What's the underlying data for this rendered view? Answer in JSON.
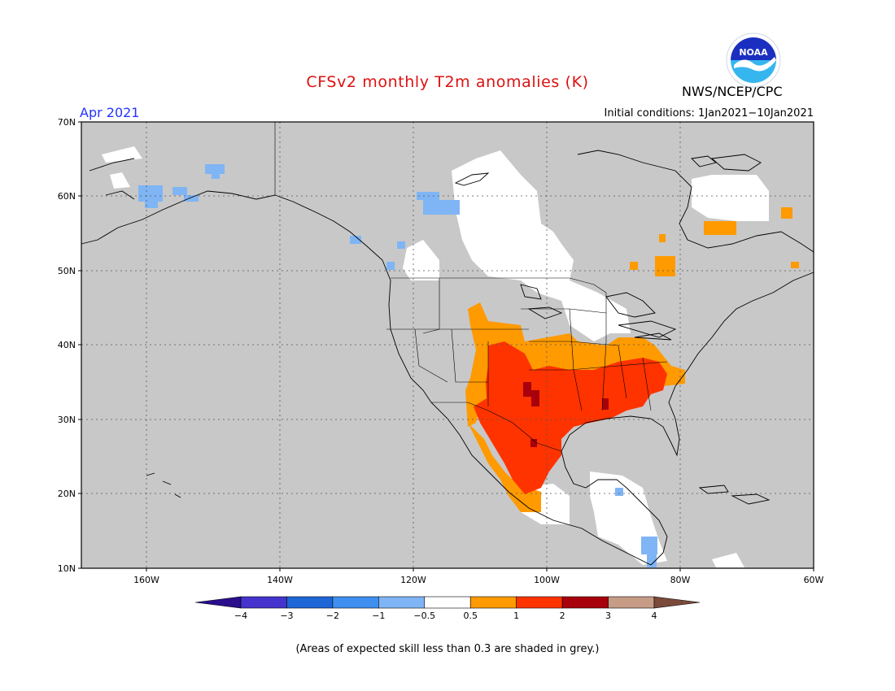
{
  "header": {
    "title": "CFSv2 monthly T2m anomalies (K)",
    "org": "NWS/NCEP/CPC",
    "valid_month": "Apr 2021",
    "initial_conditions": "Initial conditions: 1Jan2021−10Jan2021"
  },
  "logo": {
    "icon": "noaa-logo-icon",
    "text": "NOAA"
  },
  "map": {
    "land_color": "#c8c8c8",
    "lat_labels": [
      "70N",
      "60N",
      "50N",
      "40N",
      "30N",
      "20N",
      "10N"
    ],
    "lon_labels": [
      "160W",
      "140W",
      "120W",
      "100W",
      "80W",
      "60W"
    ]
  },
  "colorbar": {
    "colors": [
      "#2a0e8c",
      "#4433cc",
      "#1f66d6",
      "#3f8ff0",
      "#7fb5f5",
      "#ffffff",
      "#ff9a00",
      "#ff3300",
      "#a8000c",
      "#c79c86",
      "#7a4a3a"
    ],
    "tick_labels": [
      "−4",
      "−3",
      "−2",
      "−1",
      "−0.5",
      "0.5",
      "1",
      "2",
      "3",
      "4"
    ]
  },
  "footer": {
    "note": "(Areas of expected skill less than 0.3 are shaded in grey.)"
  }
}
